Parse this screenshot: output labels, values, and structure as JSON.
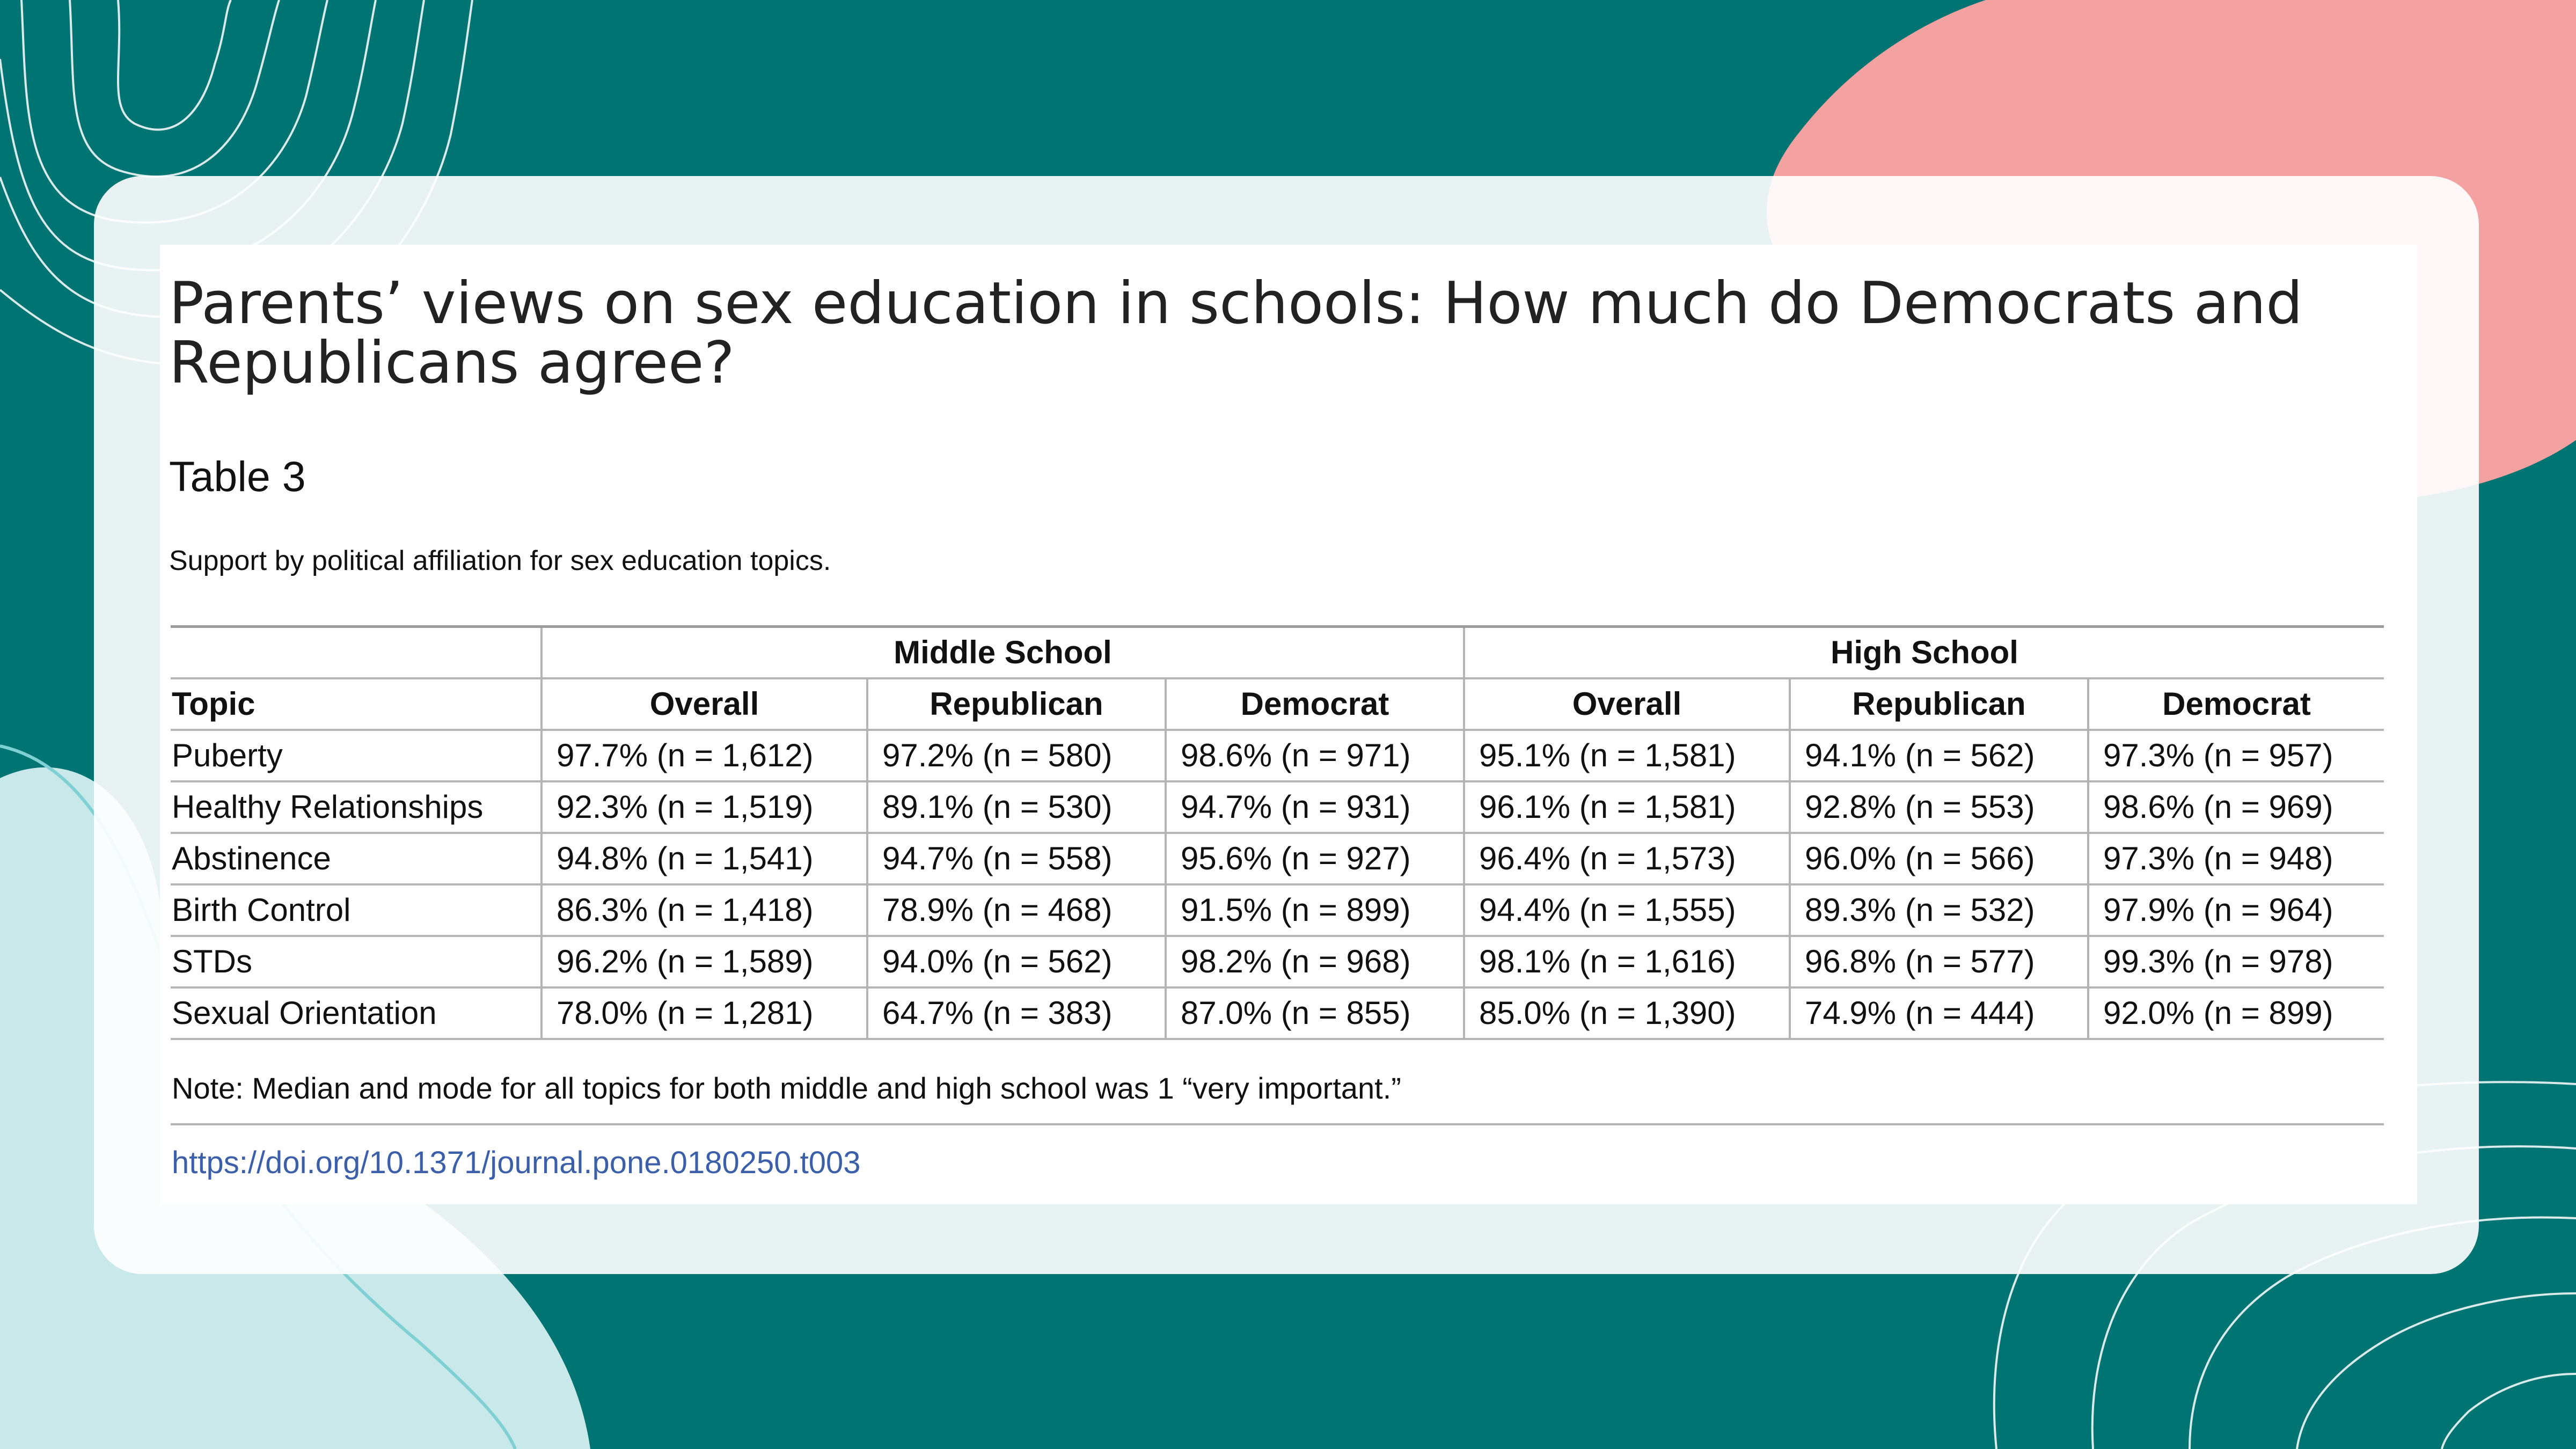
{
  "title": "Parents’ views on sex education in schools: How much do Democrats and Republicans agree?",
  "table_number": "Table 3",
  "caption": "Support by political affiliation for sex education topics.",
  "table": {
    "group_headers": [
      "Middle School",
      "High School"
    ],
    "column_headers": [
      "Topic",
      "Overall",
      "Republican",
      "Democrat",
      "Overall",
      "Republican",
      "Democrat"
    ],
    "rows": [
      [
        "Puberty",
        "97.7% (n = 1,612)",
        "97.2% (n = 580)",
        "98.6% (n = 971)",
        "95.1% (n = 1,581)",
        "94.1% (n = 562)",
        "97.3% (n = 957)"
      ],
      [
        "Healthy Relationships",
        "92.3% (n = 1,519)",
        "89.1% (n = 530)",
        "94.7% (n = 931)",
        "96.1% (n = 1,581)",
        "92.8% (n = 553)",
        "98.6% (n = 969)"
      ],
      [
        "Abstinence",
        "94.8% (n = 1,541)",
        "94.7% (n = 558)",
        "95.6% (n = 927)",
        "96.4% (n = 1,573)",
        "96.0% (n = 566)",
        "97.3% (n = 948)"
      ],
      [
        "Birth Control",
        "86.3% (n = 1,418)",
        "78.9% (n = 468)",
        "91.5% (n = 899)",
        "94.4% (n = 1,555)",
        "89.3% (n = 532)",
        "97.9% (n = 964)"
      ],
      [
        "STDs",
        "96.2% (n = 1,589)",
        "94.0% (n = 562)",
        "98.2% (n = 968)",
        "98.1% (n = 1,616)",
        "96.8% (n = 577)",
        "99.3% (n = 978)"
      ],
      [
        "Sexual Orientation",
        "78.0% (n = 1,281)",
        "64.7% (n = 383)",
        "87.0% (n = 855)",
        "85.0% (n = 1,390)",
        "74.9% (n = 444)",
        "92.0% (n = 899)"
      ]
    ]
  },
  "note": "Note: Median and mode for all topics for both middle and high school was 1 “very important.”",
  "doi_link": "https://doi.org/10.1371/journal.pone.0180250.t003",
  "colors": {
    "background": "#007472",
    "accent_pink": "#f4a1a1",
    "light_teal": "#c9e8ea",
    "link": "#3b5fa8"
  }
}
